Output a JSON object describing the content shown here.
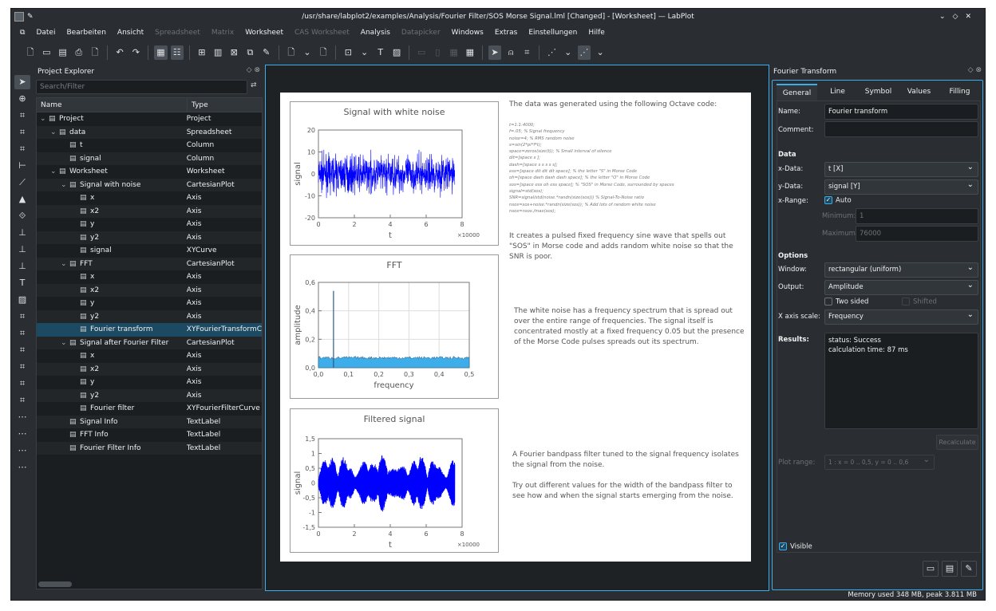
{
  "window": {
    "title": "/usr/share/labplot2/examples/Analysis/Fourier Filter/SOS Morse Signal.lml [Changed] - [Worksheet] — LabPlot",
    "controls": [
      "⌄",
      "◇",
      "✕"
    ]
  },
  "menu": [
    {
      "label": "Datei",
      "enabled": true
    },
    {
      "label": "Bearbeiten",
      "enabled": true
    },
    {
      "label": "Ansicht",
      "enabled": true
    },
    {
      "label": "Spreadsheet",
      "enabled": false
    },
    {
      "label": "Matrix",
      "enabled": false
    },
    {
      "label": "Worksheet",
      "enabled": true
    },
    {
      "label": "CAS Worksheet",
      "enabled": false
    },
    {
      "label": "Analysis",
      "enabled": true
    },
    {
      "label": "Datapicker",
      "enabled": false
    },
    {
      "label": "Windows",
      "enabled": true
    },
    {
      "label": "Extras",
      "enabled": true
    },
    {
      "label": "Einstellungen",
      "enabled": true
    },
    {
      "label": "Hilfe",
      "enabled": true
    }
  ],
  "explorer": {
    "title": "Project Explorer",
    "search_placeholder": "Search/Filter",
    "col_name": "Name",
    "col_type": "Type",
    "rows": [
      {
        "name": "Project",
        "type": "Project",
        "depth": 0,
        "icon": "folder-icon",
        "arrow": "⌄"
      },
      {
        "name": "data",
        "type": "Spreadsheet",
        "depth": 1,
        "icon": "spreadsheet-icon",
        "arrow": "⌄"
      },
      {
        "name": "t",
        "type": "Column",
        "depth": 2,
        "icon": "column-icon"
      },
      {
        "name": "signal",
        "type": "Column",
        "depth": 2,
        "icon": "column-icon"
      },
      {
        "name": "Worksheet",
        "type": "Worksheet",
        "depth": 1,
        "icon": "worksheet-icon",
        "arrow": "⌄"
      },
      {
        "name": "Signal with noise",
        "type": "CartesianPlot",
        "depth": 2,
        "icon": "plot-icon",
        "arrow": "⌄"
      },
      {
        "name": "x",
        "type": "Axis",
        "depth": 3,
        "icon": "axis-icon"
      },
      {
        "name": "x2",
        "type": "Axis",
        "depth": 3,
        "icon": "axis-icon"
      },
      {
        "name": "y",
        "type": "Axis",
        "depth": 3,
        "icon": "axis-icon"
      },
      {
        "name": "y2",
        "type": "Axis",
        "depth": 3,
        "icon": "axis-icon"
      },
      {
        "name": "signal",
        "type": "XYCurve",
        "depth": 3,
        "icon": "curve-icon"
      },
      {
        "name": "FFT",
        "type": "CartesianPlot",
        "depth": 2,
        "icon": "plot-icon",
        "arrow": "⌄"
      },
      {
        "name": "x",
        "type": "Axis",
        "depth": 3,
        "icon": "axis-icon"
      },
      {
        "name": "x2",
        "type": "Axis",
        "depth": 3,
        "icon": "axis-icon"
      },
      {
        "name": "y",
        "type": "Axis",
        "depth": 3,
        "icon": "axis-icon"
      },
      {
        "name": "y2",
        "type": "Axis",
        "depth": 3,
        "icon": "axis-icon"
      },
      {
        "name": "Fourier transform",
        "type": "XYFourierTransformCurve",
        "depth": 3,
        "icon": "fourier-icon",
        "selected": true
      },
      {
        "name": "Signal after Fourier Filter",
        "type": "CartesianPlot",
        "depth": 2,
        "icon": "plot-icon",
        "arrow": "⌄"
      },
      {
        "name": "x",
        "type": "Axis",
        "depth": 3,
        "icon": "axis-icon"
      },
      {
        "name": "x2",
        "type": "Axis",
        "depth": 3,
        "icon": "axis-icon"
      },
      {
        "name": "y",
        "type": "Axis",
        "depth": 3,
        "icon": "axis-icon"
      },
      {
        "name": "y2",
        "type": "Axis",
        "depth": 3,
        "icon": "axis-icon"
      },
      {
        "name": "Fourier filter",
        "type": "XYFourierFilterCurve",
        "depth": 3,
        "icon": "filter-icon"
      },
      {
        "name": "Signal Info",
        "type": "TextLabel",
        "depth": 2,
        "icon": "textlabel-icon"
      },
      {
        "name": "FFT Info",
        "type": "TextLabel",
        "depth": 2,
        "icon": "textlabel-icon"
      },
      {
        "name": "Fourier Filter Info",
        "type": "TextLabel",
        "depth": 2,
        "icon": "textlabel-icon"
      }
    ]
  },
  "worksheet": {
    "intro": "The data was generated using the following Octave code:",
    "code": [
      "t=1:1:4000;",
      "f=.05; % Signal frequency",
      "noise=4; % RMS random noise",
      "s=sin(2*pi*f*t);",
      "space=zeros(size(t)); % Small interval of silence",
      "dit=[space s ];",
      "dash=[space s s s s s];",
      "ess=[space dit dit dit space]; % the letter \"S\" in Morse Code",
      "oh=[space dash dash dash space];  % the letter \"O\" in Morse Code",
      "sos=[space ess oh ess space];  % \"SOS\" in Morse Code, surrounded by spaces",
      "signal=std(sos);",
      "SNR=signal/std(noise.*randn(size(sos))) % Signal-To-Noise ratio",
      "nsos=sos+noise.*randn(size(sos));  % Add lots of random white noise",
      "nsos=nsos./max(sos);"
    ],
    "text1": "It creates a pulsed fixed frequency sine wave that spells out \"SOS\" in Morse code and adds random white noise so that the SNR is poor.",
    "text2": "The white noise has a frequency spectrum that is spread out over the entire range of frequencies. The signal itself is concentrated mostly at a fixed frequency 0.05 but the presence of the Morse Code pulses spreads out its spectrum.",
    "text3": "A Fourier bandpass filter tuned to the signal frequency isolates the signal from the noise.",
    "text4": "Try out different values for the width of the bandpass filter to see how and when the signal starts emerging from the noise."
  },
  "chart_data": [
    {
      "type": "line",
      "title": "Signal with white noise",
      "xlabel": "t",
      "ylabel": "signal",
      "xlim": [
        0,
        8
      ],
      "ylim": [
        -20,
        20
      ],
      "x_multiplier": "×10000",
      "xticks": [
        "0",
        "2",
        "4",
        "6",
        "8"
      ],
      "yticks": [
        "20",
        "10",
        "0",
        "-10",
        "-20"
      ],
      "series_envelope": [
        -11,
        11
      ],
      "x_extent": [
        0,
        7.6
      ],
      "grid": false,
      "color": "#0000ff"
    },
    {
      "type": "area",
      "title": "FFT",
      "xlabel": "frequency",
      "ylabel": "amplitude",
      "xlim": [
        0,
        0.5
      ],
      "ylim": [
        0,
        0.6
      ],
      "xticks": [
        "0,0",
        "0,1",
        "0,2",
        "0,3",
        "0,4",
        "0,5"
      ],
      "yticks": [
        "0,6",
        "0,4",
        "0,2",
        "0,0"
      ],
      "peak": {
        "x": 0.05,
        "y": 0.54
      },
      "noise_floor": 0.07,
      "grid": true,
      "color": "#3daee9"
    },
    {
      "type": "line",
      "title": "Filtered signal",
      "xlabel": "t",
      "ylabel": "signal",
      "xlim": [
        0,
        8
      ],
      "ylim": [
        -1.5,
        1.5
      ],
      "x_multiplier": "×10000",
      "xticks": [
        "0",
        "2",
        "4",
        "6",
        "8"
      ],
      "yticks": [
        "1,5",
        "1",
        "0,5",
        "0",
        "-0,5",
        "-1",
        "-1,5"
      ],
      "x_extent": [
        0,
        7.6
      ],
      "grid": false,
      "color": "#0000ff"
    }
  ],
  "panel": {
    "title": "Fourier Transform",
    "tabs": [
      "General",
      "Line",
      "Symbol",
      "Values",
      "Filling"
    ],
    "name_label": "Name:",
    "name_value": "Fourier transform",
    "comment_label": "Comment:",
    "comment_value": "",
    "data_header": "Data",
    "xdata_label": "x-Data:",
    "xdata_value": "t [X]",
    "ydata_label": "y-Data:",
    "ydata_value": "signal [Y]",
    "xrange_label": "x-Range:",
    "auto_label": "Auto",
    "auto_checked": true,
    "min_label": "Minimum:",
    "min_value": "1",
    "max_label": "Maximum:",
    "max_value": "76000",
    "options_header": "Options",
    "window_label": "Window:",
    "window_value": "rectangular (uniform)",
    "output_label": "Output:",
    "output_value": "Amplitude",
    "twosided_label": "Two sided",
    "twosided_checked": false,
    "shifted_label": "Shifted",
    "shifted_checked": false,
    "xscale_label": "X axis scale:",
    "xscale_value": "Frequency",
    "results_label": "Results:",
    "results_lines": [
      "status: Success",
      "calculation time: 87 ms"
    ],
    "recalc_label": "Recalculate",
    "plotrange_label": "Plot range:",
    "plotrange_value": "1 : x = 0 .. 0,5, y = 0 .. 0,6",
    "visible_label": "Visible",
    "visible_checked": true
  },
  "status": "Memory used 348 MB, peak 3.811 MB",
  "accent": "#3daee9"
}
